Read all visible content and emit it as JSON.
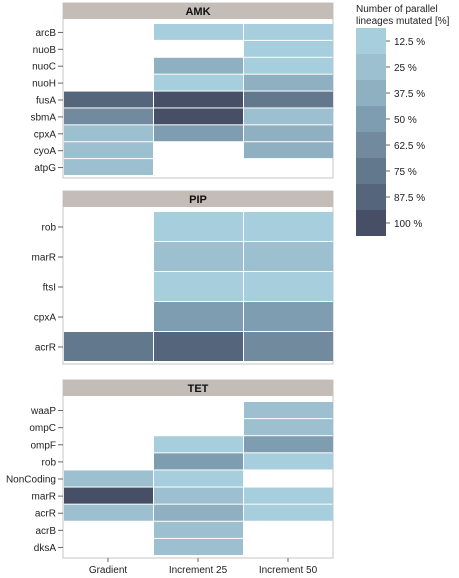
{
  "chart_data": {
    "type": "heatmap",
    "x_categories": [
      "Gradient",
      "Increment 25",
      "Increment 50"
    ],
    "legend": {
      "title_lines": [
        "Number of parallel",
        "lineages mutated  [%]"
      ],
      "levels": [
        {
          "label": "12.5 %",
          "value": 12.5,
          "color": "#a6cedc"
        },
        {
          "label": "25 %",
          "value": 25,
          "color": "#9cc0d0"
        },
        {
          "label": "37.5 %",
          "value": 37.5,
          "color": "#8fb0c0"
        },
        {
          "label": "50 %",
          "value": 50,
          "color": "#7f9db0"
        },
        {
          "label": "62.5 %",
          "value": 62.5,
          "color": "#718a9e"
        },
        {
          "label": "75 %",
          "value": 75,
          "color": "#62788d"
        },
        {
          "label": "87.5 %",
          "value": 87.5,
          "color": "#55657b"
        },
        {
          "label": "100 %",
          "value": 100,
          "color": "#474f66"
        }
      ]
    },
    "panels": [
      {
        "title": "AMK",
        "genes": [
          "arcB",
          "nuoB",
          "nuoC",
          "nuoH",
          "fusA",
          "sbmA",
          "cpxA",
          "cyoA",
          "atpG"
        ],
        "values": {
          "Gradient": [
            null,
            null,
            null,
            null,
            87.5,
            62.5,
            25,
            25,
            25
          ],
          "Increment 25": [
            12.5,
            null,
            37.5,
            12.5,
            100,
            100,
            50,
            null,
            null
          ],
          "Increment 50": [
            12.5,
            12.5,
            12.5,
            37.5,
            75,
            25,
            37.5,
            37.5,
            null
          ]
        }
      },
      {
        "title": "PIP",
        "genes": [
          "rob",
          "marR",
          "ftsI",
          "cpxA",
          "acrR"
        ],
        "values": {
          "Gradient": [
            null,
            null,
            null,
            null,
            75
          ],
          "Increment 25": [
            12.5,
            25,
            12.5,
            50,
            87.5
          ],
          "Increment 50": [
            12.5,
            25,
            12.5,
            50,
            62.5
          ]
        }
      },
      {
        "title": "TET",
        "genes": [
          "waaP",
          "ompC",
          "ompF",
          "rob",
          "NonCoding",
          "marR",
          "acrR",
          "acrB",
          "dksA"
        ],
        "values": {
          "Gradient": [
            null,
            null,
            null,
            null,
            25,
            100,
            25,
            null,
            null
          ],
          "Increment 25": [
            null,
            null,
            12.5,
            50,
            12.5,
            25,
            37.5,
            25,
            25
          ],
          "Increment 50": [
            25,
            25,
            50,
            12.5,
            null,
            12.5,
            12.5,
            null,
            null
          ]
        }
      }
    ]
  }
}
